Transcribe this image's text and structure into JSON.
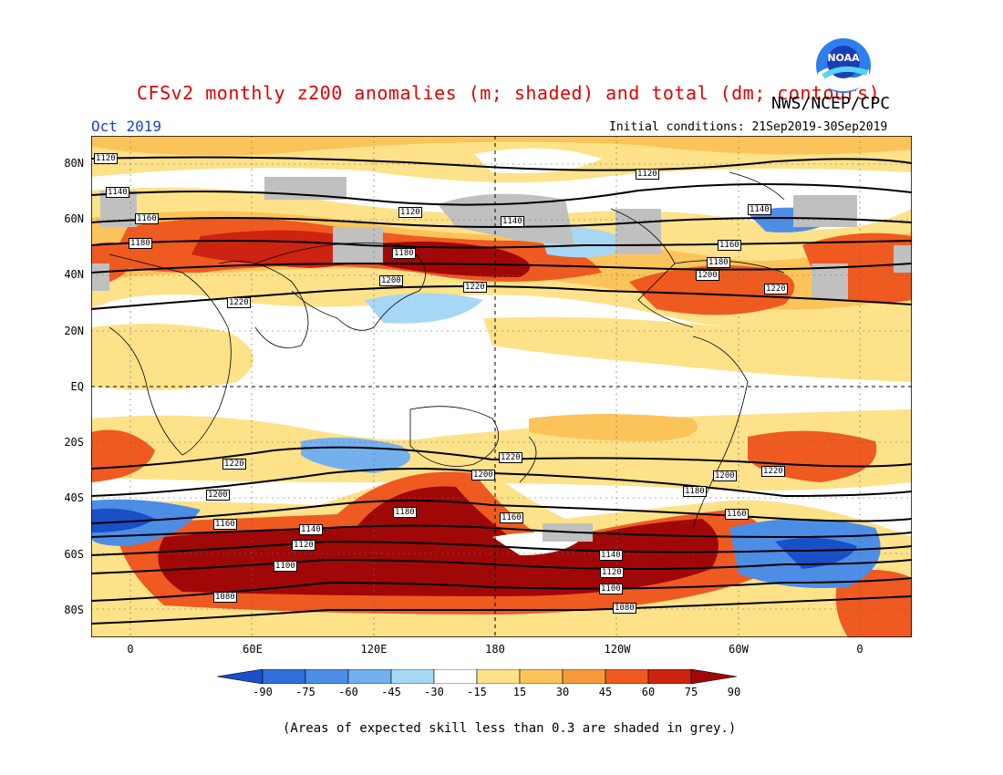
{
  "header": {
    "title": "CFSv2 monthly z200 anomalies (m; shaded) and total (dm; contours)",
    "agency": "NWS/NCEP/CPC",
    "month": "Oct 2019",
    "initial_conditions": "Initial conditions: 21Sep2019-30Sep2019",
    "logo_text": "NOAA"
  },
  "map": {
    "lat_labels": [
      "80N",
      "60N",
      "40N",
      "20N",
      "EQ",
      "20S",
      "40S",
      "60S",
      "80S"
    ],
    "lon_labels": [
      "0",
      "60E",
      "120E",
      "180",
      "120W",
      "60W",
      "0"
    ],
    "contour_labels": [
      "1120",
      "1140",
      "1160",
      "1180",
      "1200",
      "1220",
      "1100",
      "1080"
    ],
    "colors": {
      "strong_negative": "#1f5fd6",
      "negative": "#4a90e6",
      "weak_negative": "#9fd3f2",
      "neutral": "#ffffff",
      "weak_positive": "#fde28a",
      "positive": "#f9a33e",
      "strong_positive": "#e83c18",
      "extreme_positive": "#a50c0c",
      "low_skill": "#c0c0c0"
    }
  },
  "colorbar": {
    "ticks": [
      "-90",
      "-75",
      "-60",
      "-45",
      "-30",
      "-15",
      "15",
      "30",
      "45",
      "60",
      "75",
      "90"
    ],
    "colors": [
      "#1a4fc8",
      "#2e6fdc",
      "#4c8ee6",
      "#74b0ee",
      "#a6d8f5",
      "#ffffff",
      "#fde28a",
      "#fbc45a",
      "#f99a3a",
      "#ee5a20",
      "#cc2410",
      "#a00808"
    ]
  },
  "footer": {
    "note": "(Areas of expected skill less than 0.3 are shaded in grey.)"
  }
}
